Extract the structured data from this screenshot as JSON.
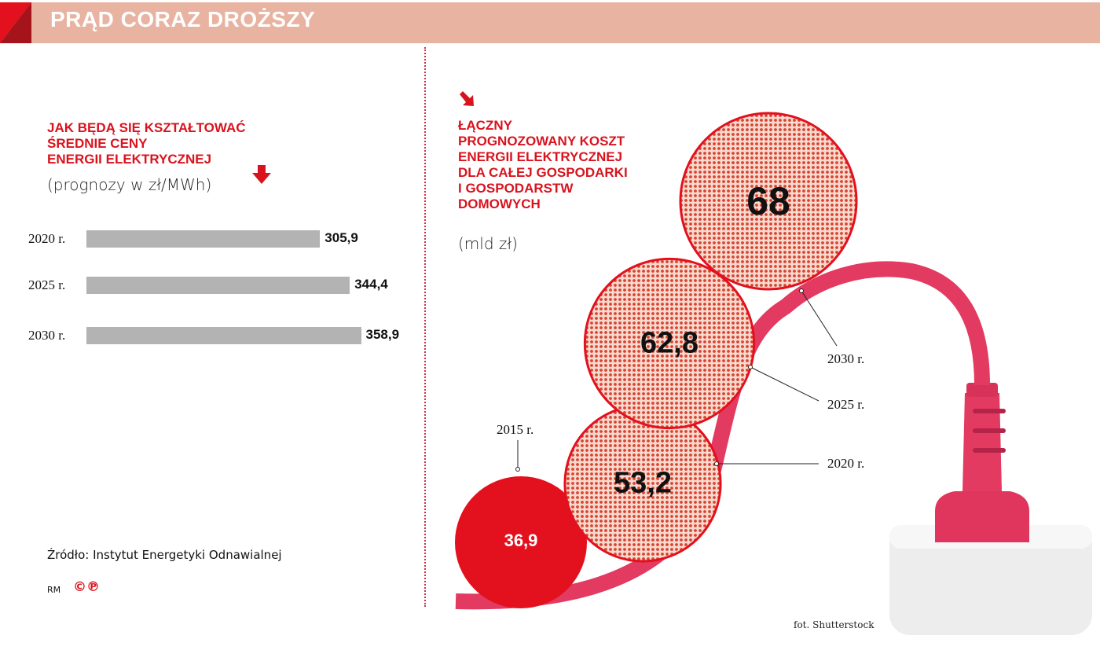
{
  "header": {
    "title": "PRĄD CORAZ DROŻSZY"
  },
  "left_panel": {
    "title_lines": [
      "JAK BĘDĄ SIĘ KSZTAŁTOWAĆ",
      "ŚREDNIE CENY",
      "ENERGII ELEKTRYCZNEJ"
    ],
    "subtitle": "(prognozy w zł/MWh)",
    "arrow_icon": "arrow-down-icon"
  },
  "right_panel": {
    "title_lines": [
      "ŁĄCZNY",
      "PROGNOZOWANY KOSZT",
      "ENERGII ELEKTRYCZNEJ",
      "DLA CAŁEJ GOSPODARKI",
      "I GOSPODARSTW",
      "DOMOWYCH"
    ],
    "subtitle": "(mld zł)",
    "arrow_icon": "arrow-down-right-icon"
  },
  "chart_data": [
    {
      "type": "bar",
      "orientation": "horizontal",
      "categories": [
        "2020 r.",
        "2025 r.",
        "2030 r."
      ],
      "values": [
        305.9,
        344.4,
        358.9
      ],
      "value_labels": [
        "305,9",
        "344,4",
        "358,9"
      ],
      "color": "#b3b3b3"
    },
    {
      "type": "bubble",
      "categories": [
        "2015 r.",
        "2020 r.",
        "2025 r.",
        "2030 r."
      ],
      "values": [
        36.9,
        53.2,
        62.8,
        68
      ],
      "value_labels": [
        "36,9",
        "53,2",
        "62,8",
        "68"
      ],
      "colors": {
        "actual": "#e3101d",
        "forecast_dots": "#d9432f",
        "forecast_bg": "#f6d9cf"
      }
    }
  ],
  "footer": {
    "source": "Źródło: Instytut Energetyki Odnawialnej",
    "author": "RM",
    "copyright": "©℗",
    "photo_credit": "fot. Shutterstock"
  },
  "colors": {
    "accent": "#d9131e",
    "header_bg": "#e8b3a1",
    "cable": "#e33a5e"
  }
}
